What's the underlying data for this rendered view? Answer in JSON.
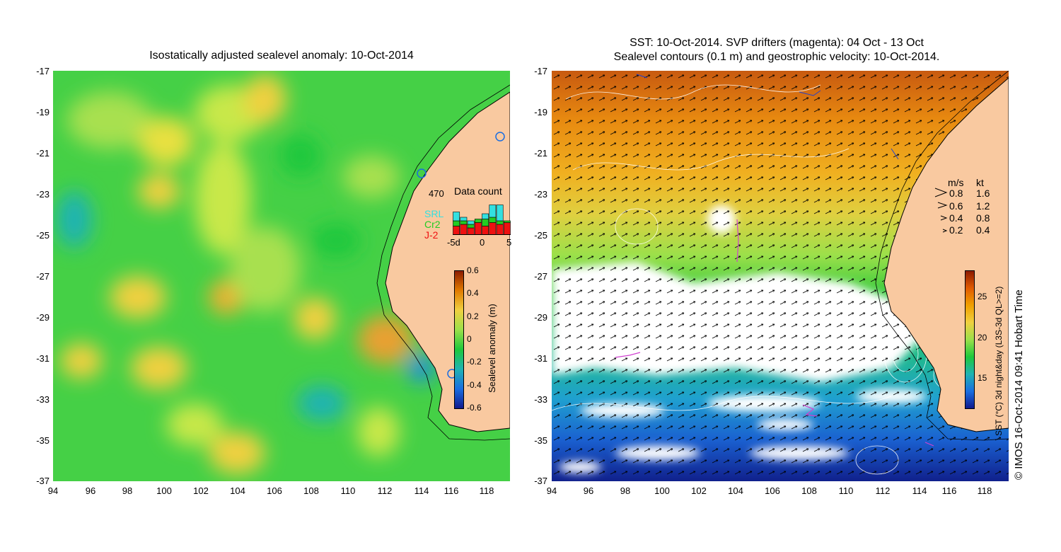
{
  "left_panel": {
    "title": "Isostatically adjusted sealevel anomaly: 10-Oct-2014",
    "y_ticks": [
      "-17",
      "-19",
      "-21",
      "-23",
      "-25",
      "-27",
      "-29",
      "-31",
      "-33",
      "-35",
      "-37"
    ],
    "x_ticks": [
      "94",
      "96",
      "98",
      "100",
      "102",
      "104",
      "106",
      "108",
      "110",
      "112",
      "114",
      "116",
      "118"
    ],
    "data_count": {
      "label": "Data count",
      "max_value": "470",
      "sources": [
        {
          "name": "SRL",
          "color": "#33e0e0"
        },
        {
          "name": "Cr2",
          "color": "#22cc22"
        },
        {
          "name": "J-2",
          "color": "#ee1111"
        }
      ],
      "x_ticks": [
        "-5d",
        "0",
        "5"
      ],
      "bars": [
        {
          "j2": 0.25,
          "cr2": 0.15,
          "srl": 0.25
        },
        {
          "j2": 0.3,
          "cr2": 0.1,
          "srl": 0.1
        },
        {
          "j2": 0.2,
          "cr2": 0.1,
          "srl": 0.1
        },
        {
          "j2": 0.35,
          "cr2": 0.1,
          "srl": 0.0
        },
        {
          "j2": 0.25,
          "cr2": 0.2,
          "srl": 0.15
        },
        {
          "j2": 0.35,
          "cr2": 0.15,
          "srl": 0.35
        },
        {
          "j2": 0.3,
          "cr2": 0.1,
          "srl": 0.45
        },
        {
          "j2": 0.35,
          "cr2": 0.05,
          "srl": 0.0
        }
      ]
    },
    "colorbar": {
      "label": "Sealevel anomaly (m)",
      "ticks": [
        "0.6",
        "0.4",
        "0.2",
        "0",
        "-0.2",
        "-0.4",
        "-0.6"
      ],
      "colors": [
        "#8b1a00",
        "#e07a00",
        "#f0d040",
        "#9be04a",
        "#1ec83c",
        "#1fb3b3",
        "#1a6de0",
        "#10188c"
      ]
    }
  },
  "right_panel": {
    "title_line1": "SST: 10-Oct-2014. SVP drifters (magenta): 04 Oct - 13 Oct",
    "title_line2": "Sealevel contours (0.1 m) and geostrophic velocity: 10-Oct-2014.",
    "y_ticks": [
      "-17",
      "-19",
      "-21",
      "-23",
      "-25",
      "-27",
      "-29",
      "-31",
      "-33",
      "-35",
      "-37"
    ],
    "x_ticks": [
      "94",
      "96",
      "98",
      "100",
      "102",
      "104",
      "106",
      "108",
      "110",
      "112",
      "114",
      "116",
      "118"
    ],
    "velocity_legend": {
      "header_ms": "m/s",
      "header_kt": "kt",
      "rows": [
        {
          "ms": "0.8",
          "kt": "1.6"
        },
        {
          "ms": "0.6",
          "kt": "1.2"
        },
        {
          "ms": "0.4",
          "kt": "0.8"
        },
        {
          "ms": "0.2",
          "kt": "0.4"
        }
      ]
    },
    "colorbar": {
      "label": "SST (°C) 3d night&day (L3S-3d QL>=2)",
      "ticks": [
        "25",
        "20",
        "15"
      ],
      "colors": [
        "#8b1a00",
        "#e05a00",
        "#f0a000",
        "#f0d040",
        "#9be04a",
        "#1ec83c",
        "#1fb3b3",
        "#1a6de0",
        "#10188c"
      ]
    }
  },
  "credit": "© IMOS 16-Oct-2014 09:41 Hobart Time",
  "colors": {
    "land": "#f9c9a0",
    "ocean_green": "#3ed04a",
    "no_data": "#ffffff",
    "drifter": "#d040d0"
  }
}
